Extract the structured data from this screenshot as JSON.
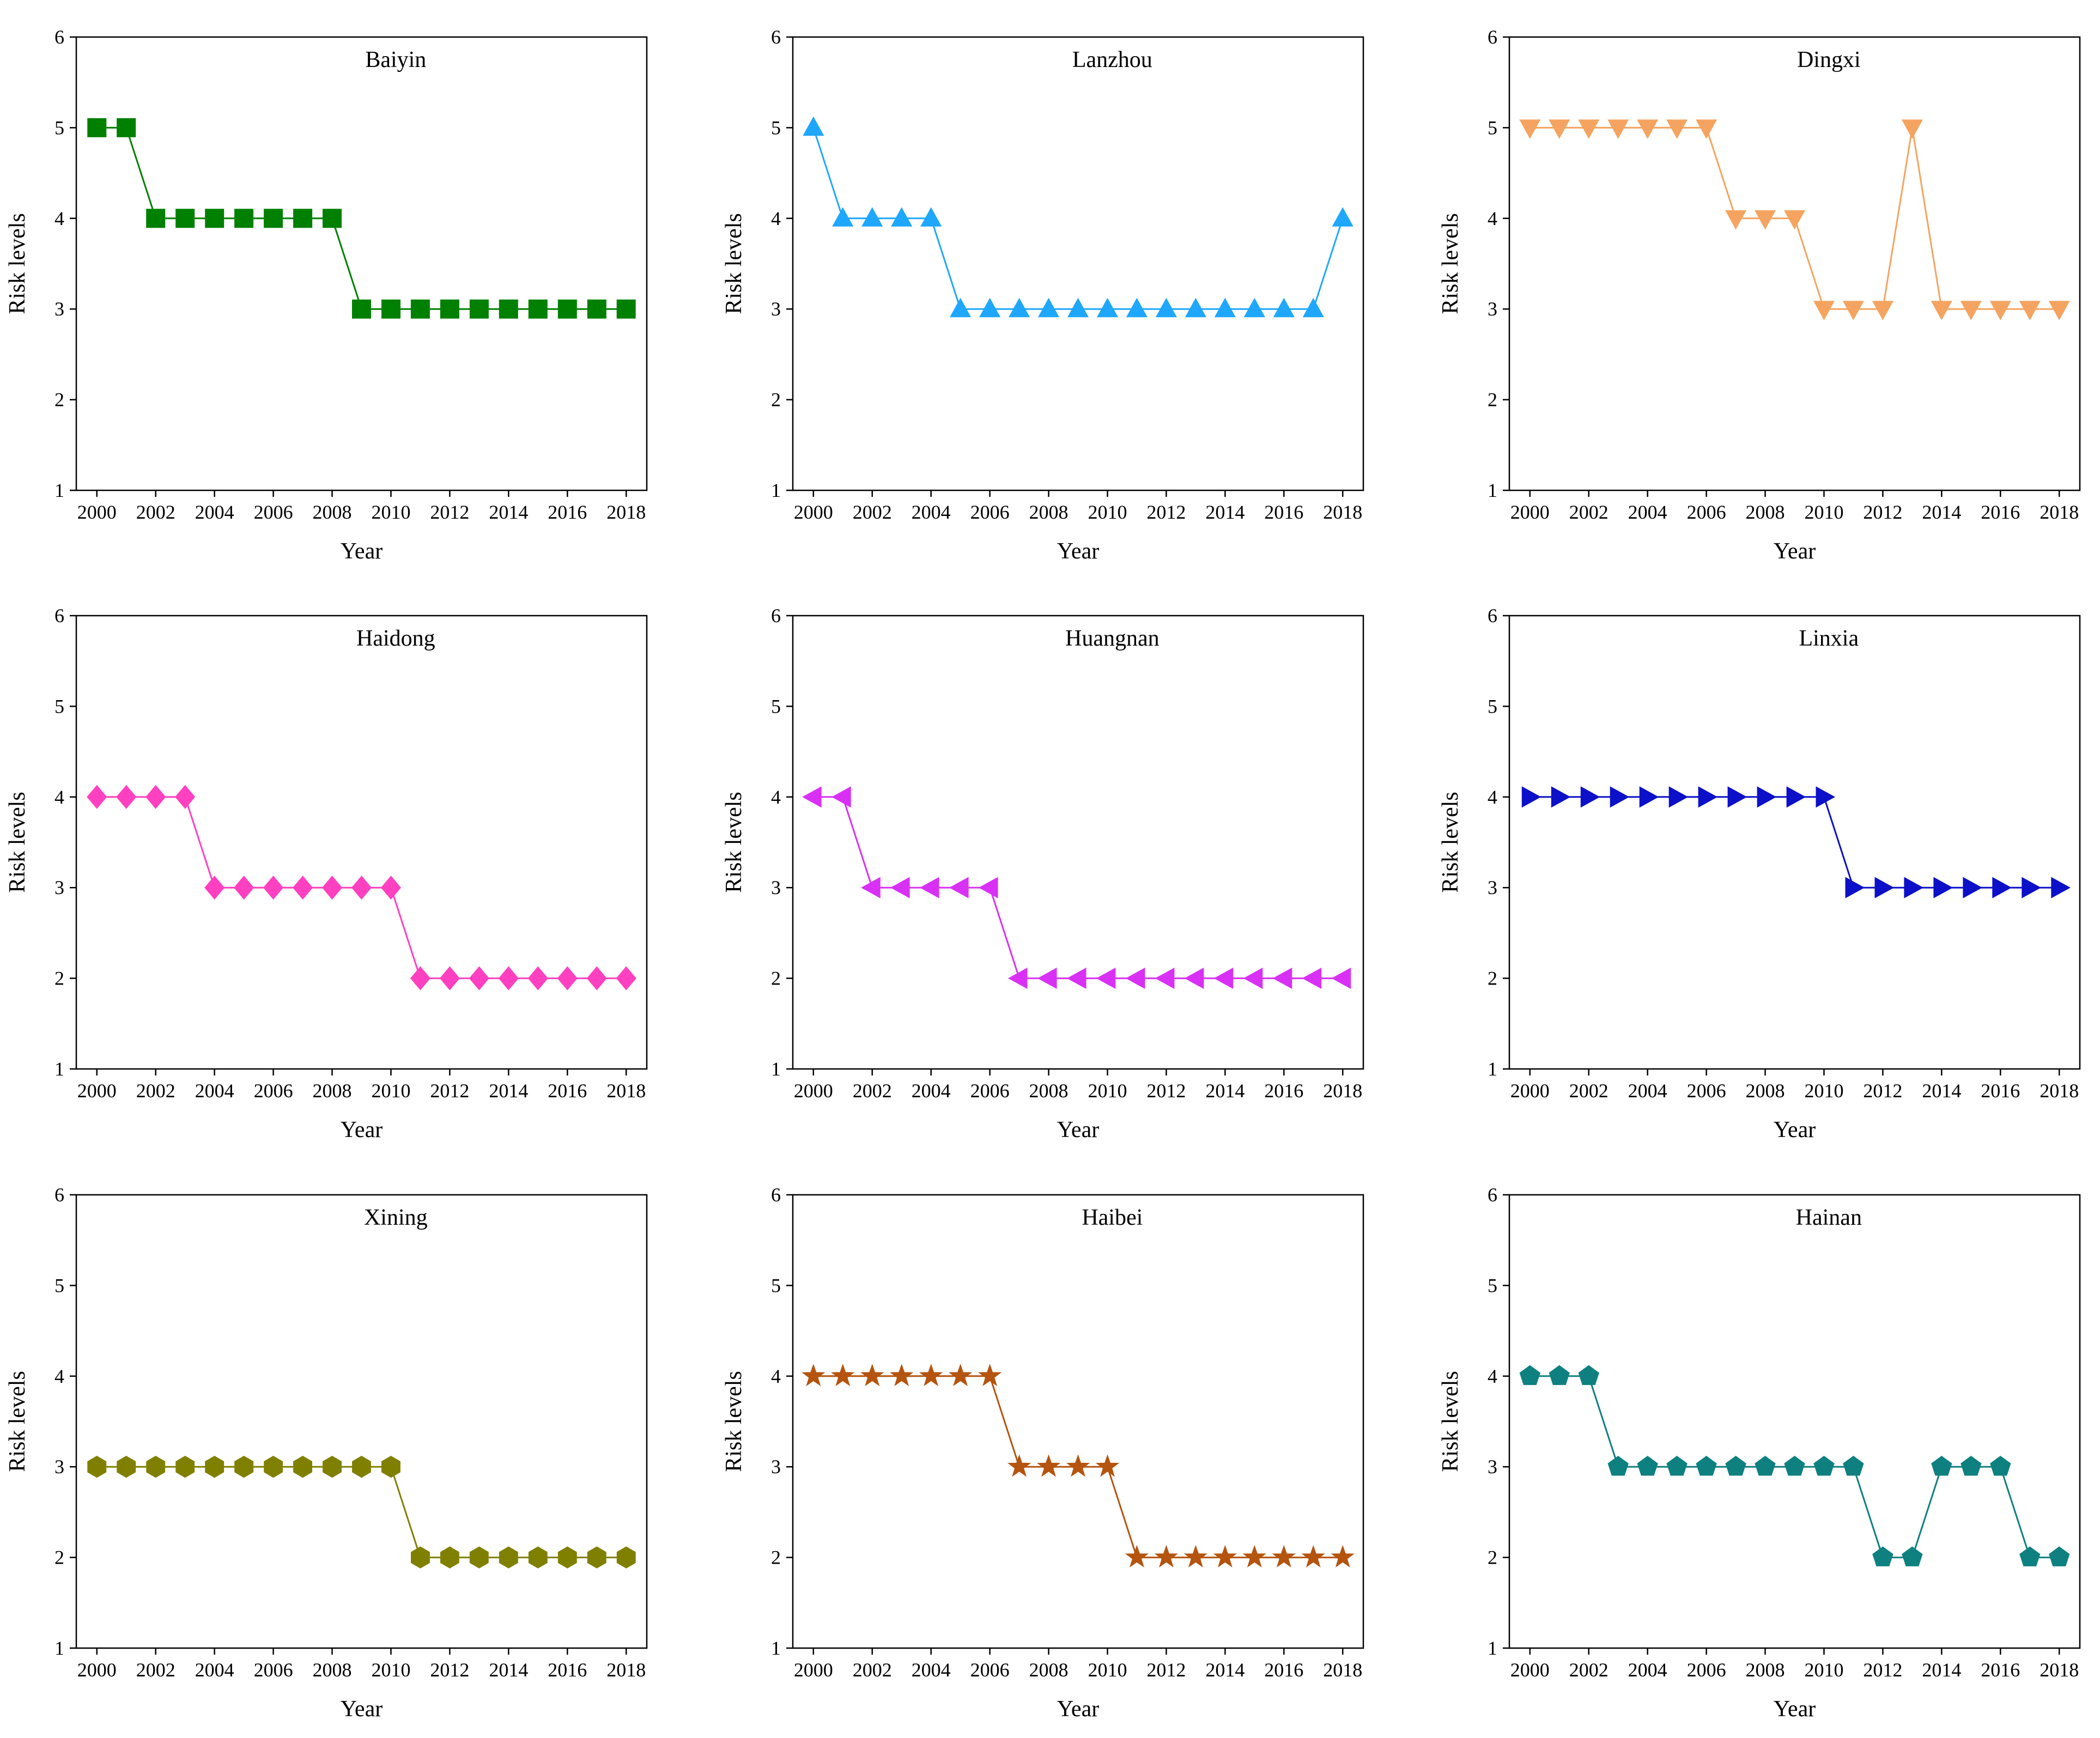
{
  "figure": {
    "xlabel": "Year",
    "ylabel": "Risk levels",
    "ylim": [
      1,
      6
    ],
    "yticks": [
      1,
      2,
      3,
      4,
      5,
      6
    ],
    "xlim": [
      1999.3,
      2018.7
    ],
    "xticks": [
      2000,
      2002,
      2004,
      2006,
      2008,
      2010,
      2012,
      2014,
      2016,
      2018
    ],
    "years": [
      2000,
      2001,
      2002,
      2003,
      2004,
      2005,
      2006,
      2007,
      2008,
      2009,
      2010,
      2011,
      2012,
      2013,
      2014,
      2015,
      2016,
      2017,
      2018
    ]
  },
  "chart_data": [
    {
      "type": "line",
      "title": "Baiyin",
      "xlabel": "Year",
      "ylabel": "Risk levels",
      "color": "#008000",
      "marker": "square",
      "x": [
        2000,
        2001,
        2002,
        2003,
        2004,
        2005,
        2006,
        2007,
        2008,
        2009,
        2010,
        2011,
        2012,
        2013,
        2014,
        2015,
        2016,
        2017,
        2018
      ],
      "values": [
        5,
        5,
        4,
        4,
        4,
        4,
        4,
        4,
        4,
        3,
        3,
        3,
        3,
        3,
        3,
        3,
        3,
        3,
        3
      ],
      "ylim": [
        1,
        6
      ]
    },
    {
      "type": "line",
      "title": "Lanzhou",
      "xlabel": "Year",
      "ylabel": "Risk levels",
      "color": "#1ea7fd",
      "marker": "triangle-up",
      "x": [
        2000,
        2001,
        2002,
        2003,
        2004,
        2005,
        2006,
        2007,
        2008,
        2009,
        2010,
        2011,
        2012,
        2013,
        2014,
        2015,
        2016,
        2017,
        2018
      ],
      "values": [
        5,
        4,
        4,
        4,
        4,
        3,
        3,
        3,
        3,
        3,
        3,
        3,
        3,
        3,
        3,
        3,
        3,
        3,
        4
      ],
      "ylim": [
        1,
        6
      ]
    },
    {
      "type": "line",
      "title": "Dingxi",
      "xlabel": "Year",
      "ylabel": "Risk levels",
      "color": "#f4a460",
      "marker": "triangle-down",
      "x": [
        2000,
        2001,
        2002,
        2003,
        2004,
        2005,
        2006,
        2007,
        2008,
        2009,
        2010,
        2011,
        2012,
        2013,
        2014,
        2015,
        2016,
        2017,
        2018
      ],
      "values": [
        5,
        5,
        5,
        5,
        5,
        5,
        5,
        4,
        4,
        4,
        3,
        3,
        3,
        5,
        3,
        3,
        3,
        3,
        3
      ],
      "ylim": [
        1,
        6
      ]
    },
    {
      "type": "line",
      "title": "Haidong",
      "xlabel": "Year",
      "ylabel": "Risk levels",
      "color": "#ff40c0",
      "marker": "diamond",
      "x": [
        2000,
        2001,
        2002,
        2003,
        2004,
        2005,
        2006,
        2007,
        2008,
        2009,
        2010,
        2011,
        2012,
        2013,
        2014,
        2015,
        2016,
        2017,
        2018
      ],
      "values": [
        4,
        4,
        4,
        4,
        3,
        3,
        3,
        3,
        3,
        3,
        3,
        2,
        2,
        2,
        2,
        2,
        2,
        2,
        2
      ],
      "ylim": [
        1,
        6
      ]
    },
    {
      "type": "line",
      "title": "Huangnan",
      "xlabel": "Year",
      "ylabel": "Risk levels",
      "color": "#d930f5",
      "marker": "triangle-left",
      "x": [
        2000,
        2001,
        2002,
        2003,
        2004,
        2005,
        2006,
        2007,
        2008,
        2009,
        2010,
        2011,
        2012,
        2013,
        2014,
        2015,
        2016,
        2017,
        2018
      ],
      "values": [
        4,
        4,
        3,
        3,
        3,
        3,
        3,
        2,
        2,
        2,
        2,
        2,
        2,
        2,
        2,
        2,
        2,
        2,
        2
      ],
      "ylim": [
        1,
        6
      ]
    },
    {
      "type": "line",
      "title": "Linxia",
      "xlabel": "Year",
      "ylabel": "Risk levels",
      "color": "#0c10c8",
      "marker": "triangle-right",
      "x": [
        2000,
        2001,
        2002,
        2003,
        2004,
        2005,
        2006,
        2007,
        2008,
        2009,
        2010,
        2011,
        2012,
        2013,
        2014,
        2015,
        2016,
        2017,
        2018
      ],
      "values": [
        4,
        4,
        4,
        4,
        4,
        4,
        4,
        4,
        4,
        4,
        4,
        3,
        3,
        3,
        3,
        3,
        3,
        3,
        3
      ],
      "ylim": [
        1,
        6
      ]
    },
    {
      "type": "line",
      "title": "Xining",
      "xlabel": "Year",
      "ylabel": "Risk levels",
      "color": "#808000",
      "marker": "hexagon",
      "x": [
        2000,
        2001,
        2002,
        2003,
        2004,
        2005,
        2006,
        2007,
        2008,
        2009,
        2010,
        2011,
        2012,
        2013,
        2014,
        2015,
        2016,
        2017,
        2018
      ],
      "values": [
        3,
        3,
        3,
        3,
        3,
        3,
        3,
        3,
        3,
        3,
        3,
        2,
        2,
        2,
        2,
        2,
        2,
        2,
        2
      ],
      "ylim": [
        1,
        6
      ]
    },
    {
      "type": "line",
      "title": "Haibei",
      "xlabel": "Year",
      "ylabel": "Risk levels",
      "color": "#b5540f",
      "marker": "star",
      "x": [
        2000,
        2001,
        2002,
        2003,
        2004,
        2005,
        2006,
        2007,
        2008,
        2009,
        2010,
        2011,
        2012,
        2013,
        2014,
        2015,
        2016,
        2017,
        2018
      ],
      "values": [
        4,
        4,
        4,
        4,
        4,
        4,
        4,
        3,
        3,
        3,
        3,
        2,
        2,
        2,
        2,
        2,
        2,
        2,
        2
      ],
      "ylim": [
        1,
        6
      ]
    },
    {
      "type": "line",
      "title": "Hainan",
      "xlabel": "Year",
      "ylabel": "Risk levels",
      "color": "#0e8080",
      "marker": "pentagon",
      "x": [
        2000,
        2001,
        2002,
        2003,
        2004,
        2005,
        2006,
        2007,
        2008,
        2009,
        2010,
        2011,
        2012,
        2013,
        2014,
        2015,
        2016,
        2017,
        2018
      ],
      "values": [
        4,
        4,
        4,
        3,
        3,
        3,
        3,
        3,
        3,
        3,
        3,
        3,
        2,
        2,
        3,
        3,
        3,
        2,
        2
      ],
      "ylim": [
        1,
        6
      ]
    }
  ]
}
